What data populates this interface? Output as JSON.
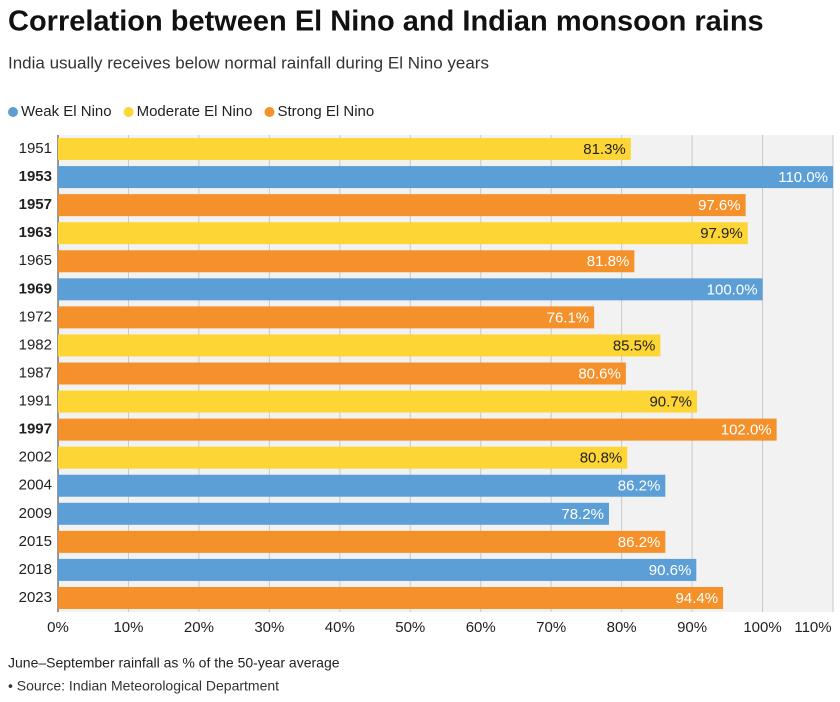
{
  "chart_data": {
    "type": "hbar",
    "title": "Correlation between El Nino and Indian monsoon rains",
    "subtitle": "India usually receives below normal rainfall during El Nino years",
    "categories": [
      "1951",
      "1953",
      "1957",
      "1963",
      "1965",
      "1969",
      "1972",
      "1982",
      "1987",
      "1991",
      "1997",
      "2002",
      "2004",
      "2009",
      "2015",
      "2018",
      "2023"
    ],
    "bold": [
      false,
      true,
      true,
      true,
      false,
      true,
      false,
      false,
      false,
      false,
      true,
      false,
      false,
      false,
      false,
      false,
      false
    ],
    "series": [
      {
        "name": "Weak El Nino",
        "color": "#5b9fd6",
        "label_color": "#ffffff",
        "values": [
          null,
          110,
          null,
          null,
          null,
          100,
          null,
          null,
          null,
          null,
          null,
          null,
          86.2,
          78.2,
          null,
          90.6,
          null
        ],
        "value_labels": [
          null,
          "110.0%",
          null,
          null,
          null,
          "100.0%",
          null,
          null,
          null,
          null,
          null,
          null,
          "86.2%",
          "78.2%",
          null,
          "90.6%",
          null
        ]
      },
      {
        "name": "Moderate El Nino",
        "color": "#fdd535",
        "label_color": "#222222",
        "values": [
          81.3,
          null,
          null,
          97.9,
          null,
          null,
          null,
          85.5,
          null,
          90.7,
          null,
          80.8,
          null,
          null,
          null,
          null,
          null
        ],
        "value_labels": [
          "81.3%",
          null,
          null,
          "97.9%",
          null,
          null,
          null,
          "85.5%",
          null,
          "90.7%",
          null,
          "80.8%",
          null,
          null,
          null,
          null,
          null
        ]
      },
      {
        "name": "Strong El Nino",
        "color": "#f4912a",
        "label_color": "#ffffff",
        "values": [
          null,
          null,
          97.6,
          null,
          81.8,
          null,
          76.1,
          null,
          80.6,
          null,
          102,
          null,
          null,
          null,
          86.2,
          null,
          94.4
        ],
        "value_labels": [
          null,
          null,
          "97.6%",
          null,
          "81.8%",
          null,
          "76.1%",
          null,
          "80.6%",
          null,
          "102.0%",
          null,
          null,
          null,
          "86.2%",
          null,
          "94.4%"
        ]
      }
    ],
    "xlim": [
      0,
      110
    ],
    "xticks": [
      {
        "value": 0,
        "label": "0%"
      },
      {
        "value": 10,
        "label": "10%"
      },
      {
        "value": 20,
        "label": "20%"
      },
      {
        "value": 30,
        "label": "30%"
      },
      {
        "value": 40,
        "label": "40%"
      },
      {
        "value": 50,
        "label": "50%"
      },
      {
        "value": 60,
        "label": "60%"
      },
      {
        "value": 70,
        "label": "70%"
      },
      {
        "value": 80,
        "label": "80%"
      },
      {
        "value": 90,
        "label": "90%"
      },
      {
        "value": 100,
        "label": "100%"
      },
      {
        "value": 110,
        "label": "110%"
      }
    ],
    "grid": true,
    "note": "June–September rainfall as % of the 50-year average",
    "source": "• Source: Indian Meteorological Department"
  }
}
